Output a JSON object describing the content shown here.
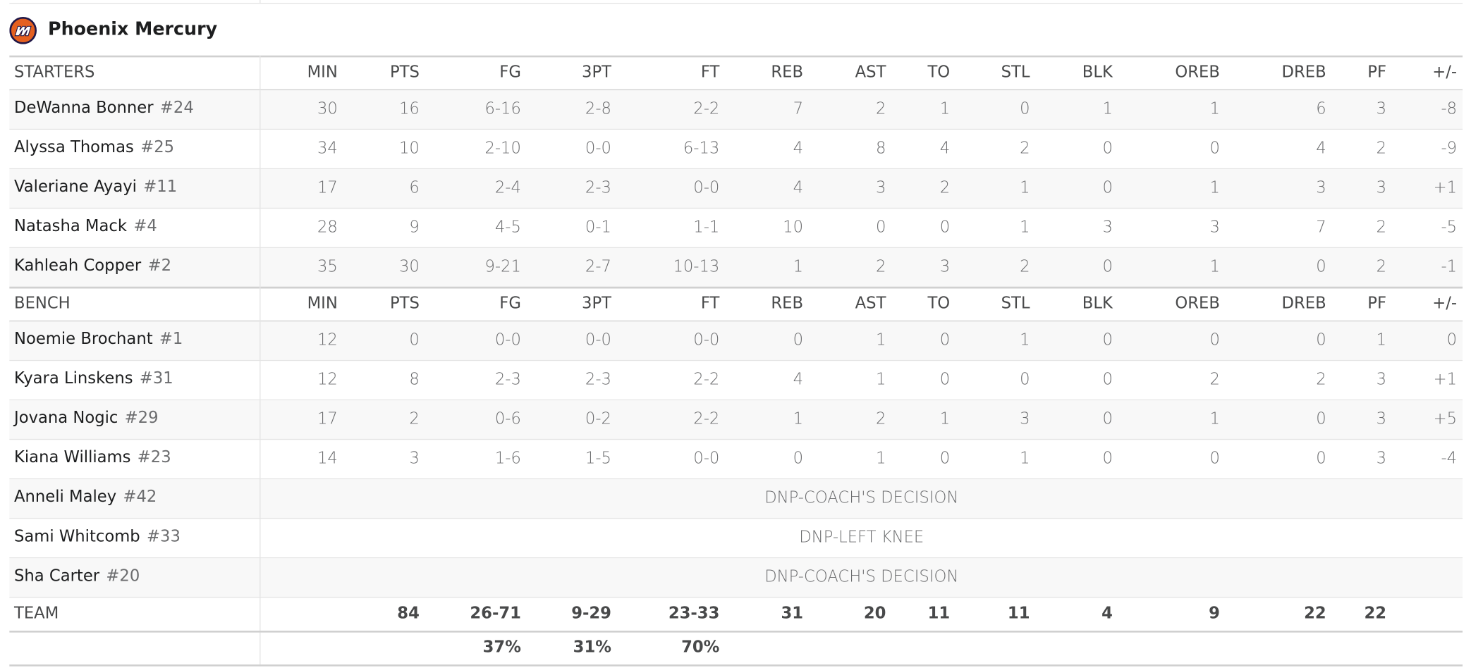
{
  "header": {
    "team": "Phoenix Mercury"
  },
  "starters": {
    "label": "STARTERS",
    "columns": [
      "MIN",
      "PTS",
      "FG",
      "3PT",
      "FT",
      "REB",
      "AST",
      "TO",
      "STL",
      "BLK",
      "OREB",
      "DREB",
      "PF",
      "+/-"
    ],
    "rows": [
      {
        "name": "DeWanna Bonner",
        "number": "#24",
        "stats": [
          "30",
          "16",
          "6-16",
          "2-8",
          "2-2",
          "7",
          "2",
          "1",
          "0",
          "1",
          "1",
          "6",
          "3",
          "-8"
        ]
      },
      {
        "name": "Alyssa Thomas",
        "number": "#25",
        "stats": [
          "34",
          "10",
          "2-10",
          "0-0",
          "6-13",
          "4",
          "8",
          "4",
          "2",
          "0",
          "0",
          "4",
          "2",
          "-9"
        ]
      },
      {
        "name": "Valeriane Ayayi",
        "number": "#11",
        "stats": [
          "17",
          "6",
          "2-4",
          "2-3",
          "0-0",
          "4",
          "3",
          "2",
          "1",
          "0",
          "1",
          "3",
          "3",
          "+1"
        ]
      },
      {
        "name": "Natasha Mack",
        "number": "#4",
        "stats": [
          "28",
          "9",
          "4-5",
          "0-1",
          "1-1",
          "10",
          "0",
          "0",
          "1",
          "3",
          "3",
          "7",
          "2",
          "-5"
        ]
      },
      {
        "name": "Kahleah Copper",
        "number": "#2",
        "stats": [
          "35",
          "30",
          "9-21",
          "2-7",
          "10-13",
          "1",
          "2",
          "3",
          "2",
          "0",
          "1",
          "0",
          "2",
          "-1"
        ]
      }
    ]
  },
  "bench": {
    "label": "BENCH",
    "columns": [
      "MIN",
      "PTS",
      "FG",
      "3PT",
      "FT",
      "REB",
      "AST",
      "TO",
      "STL",
      "BLK",
      "OREB",
      "DREB",
      "PF",
      "+/-"
    ],
    "rows": [
      {
        "name": "Noemie Brochant",
        "number": "#1",
        "stats": [
          "12",
          "0",
          "0-0",
          "0-0",
          "0-0",
          "0",
          "1",
          "0",
          "1",
          "0",
          "0",
          "0",
          "1",
          "0"
        ]
      },
      {
        "name": "Kyara Linskens",
        "number": "#31",
        "stats": [
          "12",
          "8",
          "2-3",
          "2-3",
          "2-2",
          "4",
          "1",
          "0",
          "0",
          "0",
          "2",
          "2",
          "3",
          "+1"
        ]
      },
      {
        "name": "Jovana Nogic",
        "number": "#29",
        "stats": [
          "17",
          "2",
          "0-6",
          "0-2",
          "2-2",
          "1",
          "2",
          "1",
          "3",
          "0",
          "1",
          "0",
          "3",
          "+5"
        ]
      },
      {
        "name": "Kiana Williams",
        "number": "#23",
        "stats": [
          "14",
          "3",
          "1-6",
          "1-5",
          "0-0",
          "0",
          "1",
          "0",
          "1",
          "0",
          "0",
          "0",
          "3",
          "-4"
        ]
      },
      {
        "name": "Anneli Maley",
        "number": "#42",
        "dnp": "DNP-COACH'S DECISION"
      },
      {
        "name": "Sami Whitcomb",
        "number": "#33",
        "dnp": "DNP-LEFT KNEE"
      },
      {
        "name": "Sha Carter",
        "number": "#20",
        "dnp": "DNP-COACH'S DECISION"
      }
    ]
  },
  "team": {
    "label": "TEAM",
    "stats": [
      null,
      "84",
      "26-71",
      "9-29",
      "23-33",
      "31",
      "20",
      "11",
      "11",
      "4",
      "9",
      "22",
      "22",
      null
    ],
    "percentages": [
      null,
      null,
      "37%",
      "31%",
      "70%"
    ]
  }
}
